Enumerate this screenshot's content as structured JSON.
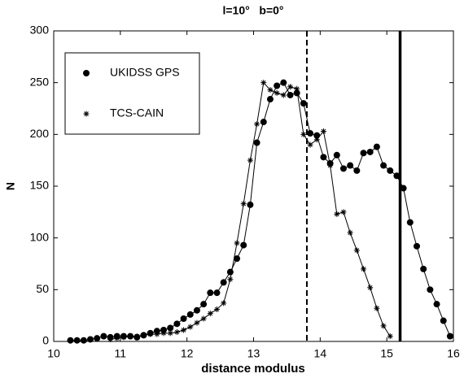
{
  "chart_data": {
    "type": "line",
    "title": "l=10°   b=0°",
    "xlabel": "distance modulus",
    "ylabel": "N",
    "xlim": [
      10,
      16
    ],
    "xticks": [
      10,
      11,
      12,
      13,
      14,
      15,
      16
    ],
    "ylim": [
      0,
      300
    ],
    "yticks": [
      0,
      50,
      100,
      150,
      200,
      250,
      300
    ],
    "legend": "upper left",
    "vlines": [
      {
        "x": 13.8,
        "style": "dashed"
      },
      {
        "x": 15.2,
        "style": "solid"
      }
    ],
    "series": [
      {
        "name": "UKIDSS GPS",
        "color": "#000000",
        "marker": "circle",
        "x": [
          10.25,
          10.35,
          10.45,
          10.55,
          10.65,
          10.75,
          10.85,
          10.95,
          11.05,
          11.15,
          11.25,
          11.35,
          11.45,
          11.55,
          11.65,
          11.75,
          11.85,
          11.95,
          12.05,
          12.15,
          12.25,
          12.35,
          12.45,
          12.55,
          12.65,
          12.75,
          12.85,
          12.95,
          13.05,
          13.15,
          13.25,
          13.35,
          13.45,
          13.55,
          13.65,
          13.75,
          13.85,
          13.95,
          14.05,
          14.15,
          14.25,
          14.35,
          14.45,
          14.55,
          14.65,
          14.75,
          14.85,
          14.95,
          15.05,
          15.15,
          15.25,
          15.35,
          15.45,
          15.55,
          15.65,
          15.75,
          15.85,
          15.95
        ],
        "values": [
          1,
          1,
          1,
          2,
          3,
          5,
          4,
          5,
          5,
          5,
          4,
          6,
          8,
          10,
          11,
          13,
          17,
          22,
          26,
          30,
          36,
          47,
          47,
          57,
          67,
          80,
          93,
          132,
          192,
          212,
          234,
          247,
          250,
          238,
          240,
          230,
          201,
          199,
          178,
          172,
          180,
          167,
          170,
          165,
          182,
          183,
          188,
          170,
          165,
          160,
          148,
          115,
          92,
          70,
          50,
          36,
          20,
          5
        ],
        "tail": null
      },
      {
        "name": "TCS-CAIN",
        "color": "#000000",
        "marker": "star",
        "x": [
          10.85,
          10.95,
          11.05,
          11.15,
          11.25,
          11.35,
          11.45,
          11.55,
          11.65,
          11.75,
          11.85,
          11.95,
          12.05,
          12.15,
          12.25,
          12.35,
          12.45,
          12.55,
          12.65,
          12.75,
          12.85,
          12.95,
          13.05,
          13.15,
          13.25,
          13.35,
          13.45,
          13.55,
          13.65,
          13.75,
          13.85,
          13.95,
          14.05,
          14.15,
          14.25,
          14.35,
          14.45,
          14.55,
          14.65,
          14.75,
          14.85,
          14.95,
          15.05
        ],
        "values": [
          2,
          3,
          4,
          5,
          5,
          6,
          7,
          7,
          8,
          8,
          9,
          11,
          14,
          18,
          22,
          27,
          31,
          37,
          60,
          95,
          133,
          175,
          210,
          250,
          243,
          240,
          238,
          246,
          244,
          200,
          190,
          195,
          203,
          170,
          123,
          125,
          105,
          88,
          70,
          52,
          32,
          15,
          5
        ]
      }
    ]
  }
}
